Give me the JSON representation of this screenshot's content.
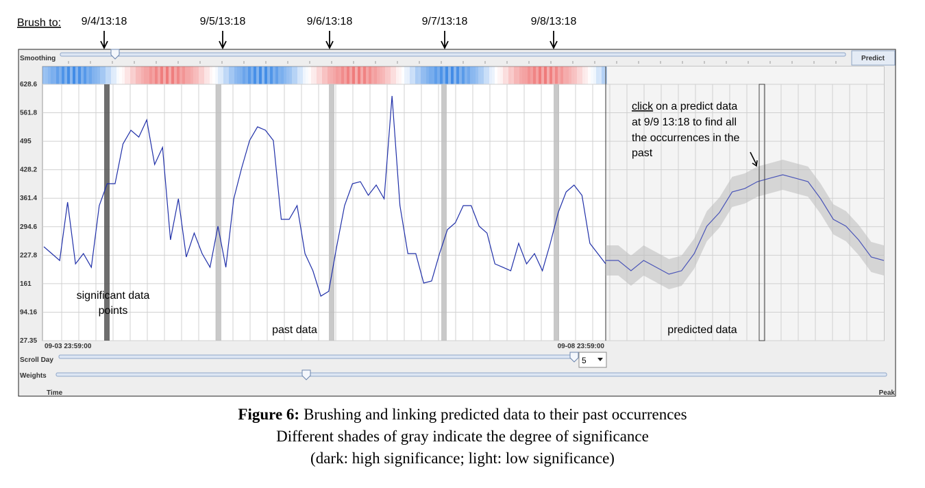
{
  "header": {
    "brush_label": "Brush to:",
    "brush_times": [
      "9/4/13:18",
      "9/5/13:18",
      "9/6/13:18",
      "9/7/13:18",
      "9/8/13:18"
    ]
  },
  "toolbar": {
    "smoothing_label": "Smoothing",
    "predict_button": "Predict"
  },
  "chart_data": {
    "type": "line",
    "ylim": [
      27.35,
      628.6
    ],
    "yticks": [
      27.35,
      94.16,
      161,
      227.8,
      294.6,
      361.4,
      428.2,
      495,
      561.8,
      628.6
    ],
    "x_start_label": "09-03 23:59:00",
    "x_end_label": "09-08 23:59:00",
    "series": [
      {
        "name": "past data",
        "color": "#1f2fa8",
        "values": [
          247.6,
          231.5,
          215.4,
          352.1,
          207.4,
          231.5,
          199.4,
          344.0,
          395.5,
          395.5,
          488.7,
          520.9,
          504.8,
          545.0,
          440.5,
          480.7,
          263.7,
          360.1,
          223.5,
          279.7,
          231.5,
          199.4,
          295.8,
          199.4,
          360.1,
          432.5,
          496.8,
          528.9,
          520.9,
          496.8,
          311.9,
          311.9,
          344.0,
          231.5,
          191.3,
          131.8,
          143.1,
          247.6,
          344.0,
          395.5,
          400.3,
          368.2,
          392.3,
          360.1,
          601.3,
          344.0,
          231.5,
          231.5,
          162.4,
          167.2,
          231.5,
          287.8,
          303.9,
          344.0,
          344.0,
          295.8,
          279.7,
          207.4,
          199.4,
          191.3,
          255.6,
          207.4,
          231.5,
          191.3,
          255.6,
          328.0,
          376.2,
          392.3,
          368.2,
          255.6,
          231.5,
          207.4
        ]
      },
      {
        "name": "predicted data",
        "color": "#4a55b8",
        "values": [
          215.4,
          215.4,
          191.3,
          215.4,
          199.4,
          183.3,
          191.3,
          231.5,
          295.8,
          328.0,
          376.2,
          384.2,
          400.3,
          408.4,
          416.4,
          408.4,
          400.3,
          360.1,
          311.9,
          295.8,
          263.7,
          223.5,
          215.4
        ]
      }
    ]
  },
  "annotations": {
    "significant": [
      "significant data",
      "points"
    ],
    "click_word": "click",
    "click_note": [
      "on a predict data",
      "at 9/9 13:18 to find all",
      "the occurrences in the",
      "past"
    ]
  },
  "controls": {
    "scroll_day_label": "Scroll Day",
    "scroll_day_value": 5,
    "weights_label": "Weights",
    "weights_min": "Time",
    "weights_max": "Peak"
  },
  "caption": {
    "figure": "Figure 6:",
    "title": "Brushing and linking predicted data to their past occurrences",
    "lines": [
      "Different shades of gray indicate the degree of significance",
      "(dark: high significance; light: low significance)"
    ]
  }
}
